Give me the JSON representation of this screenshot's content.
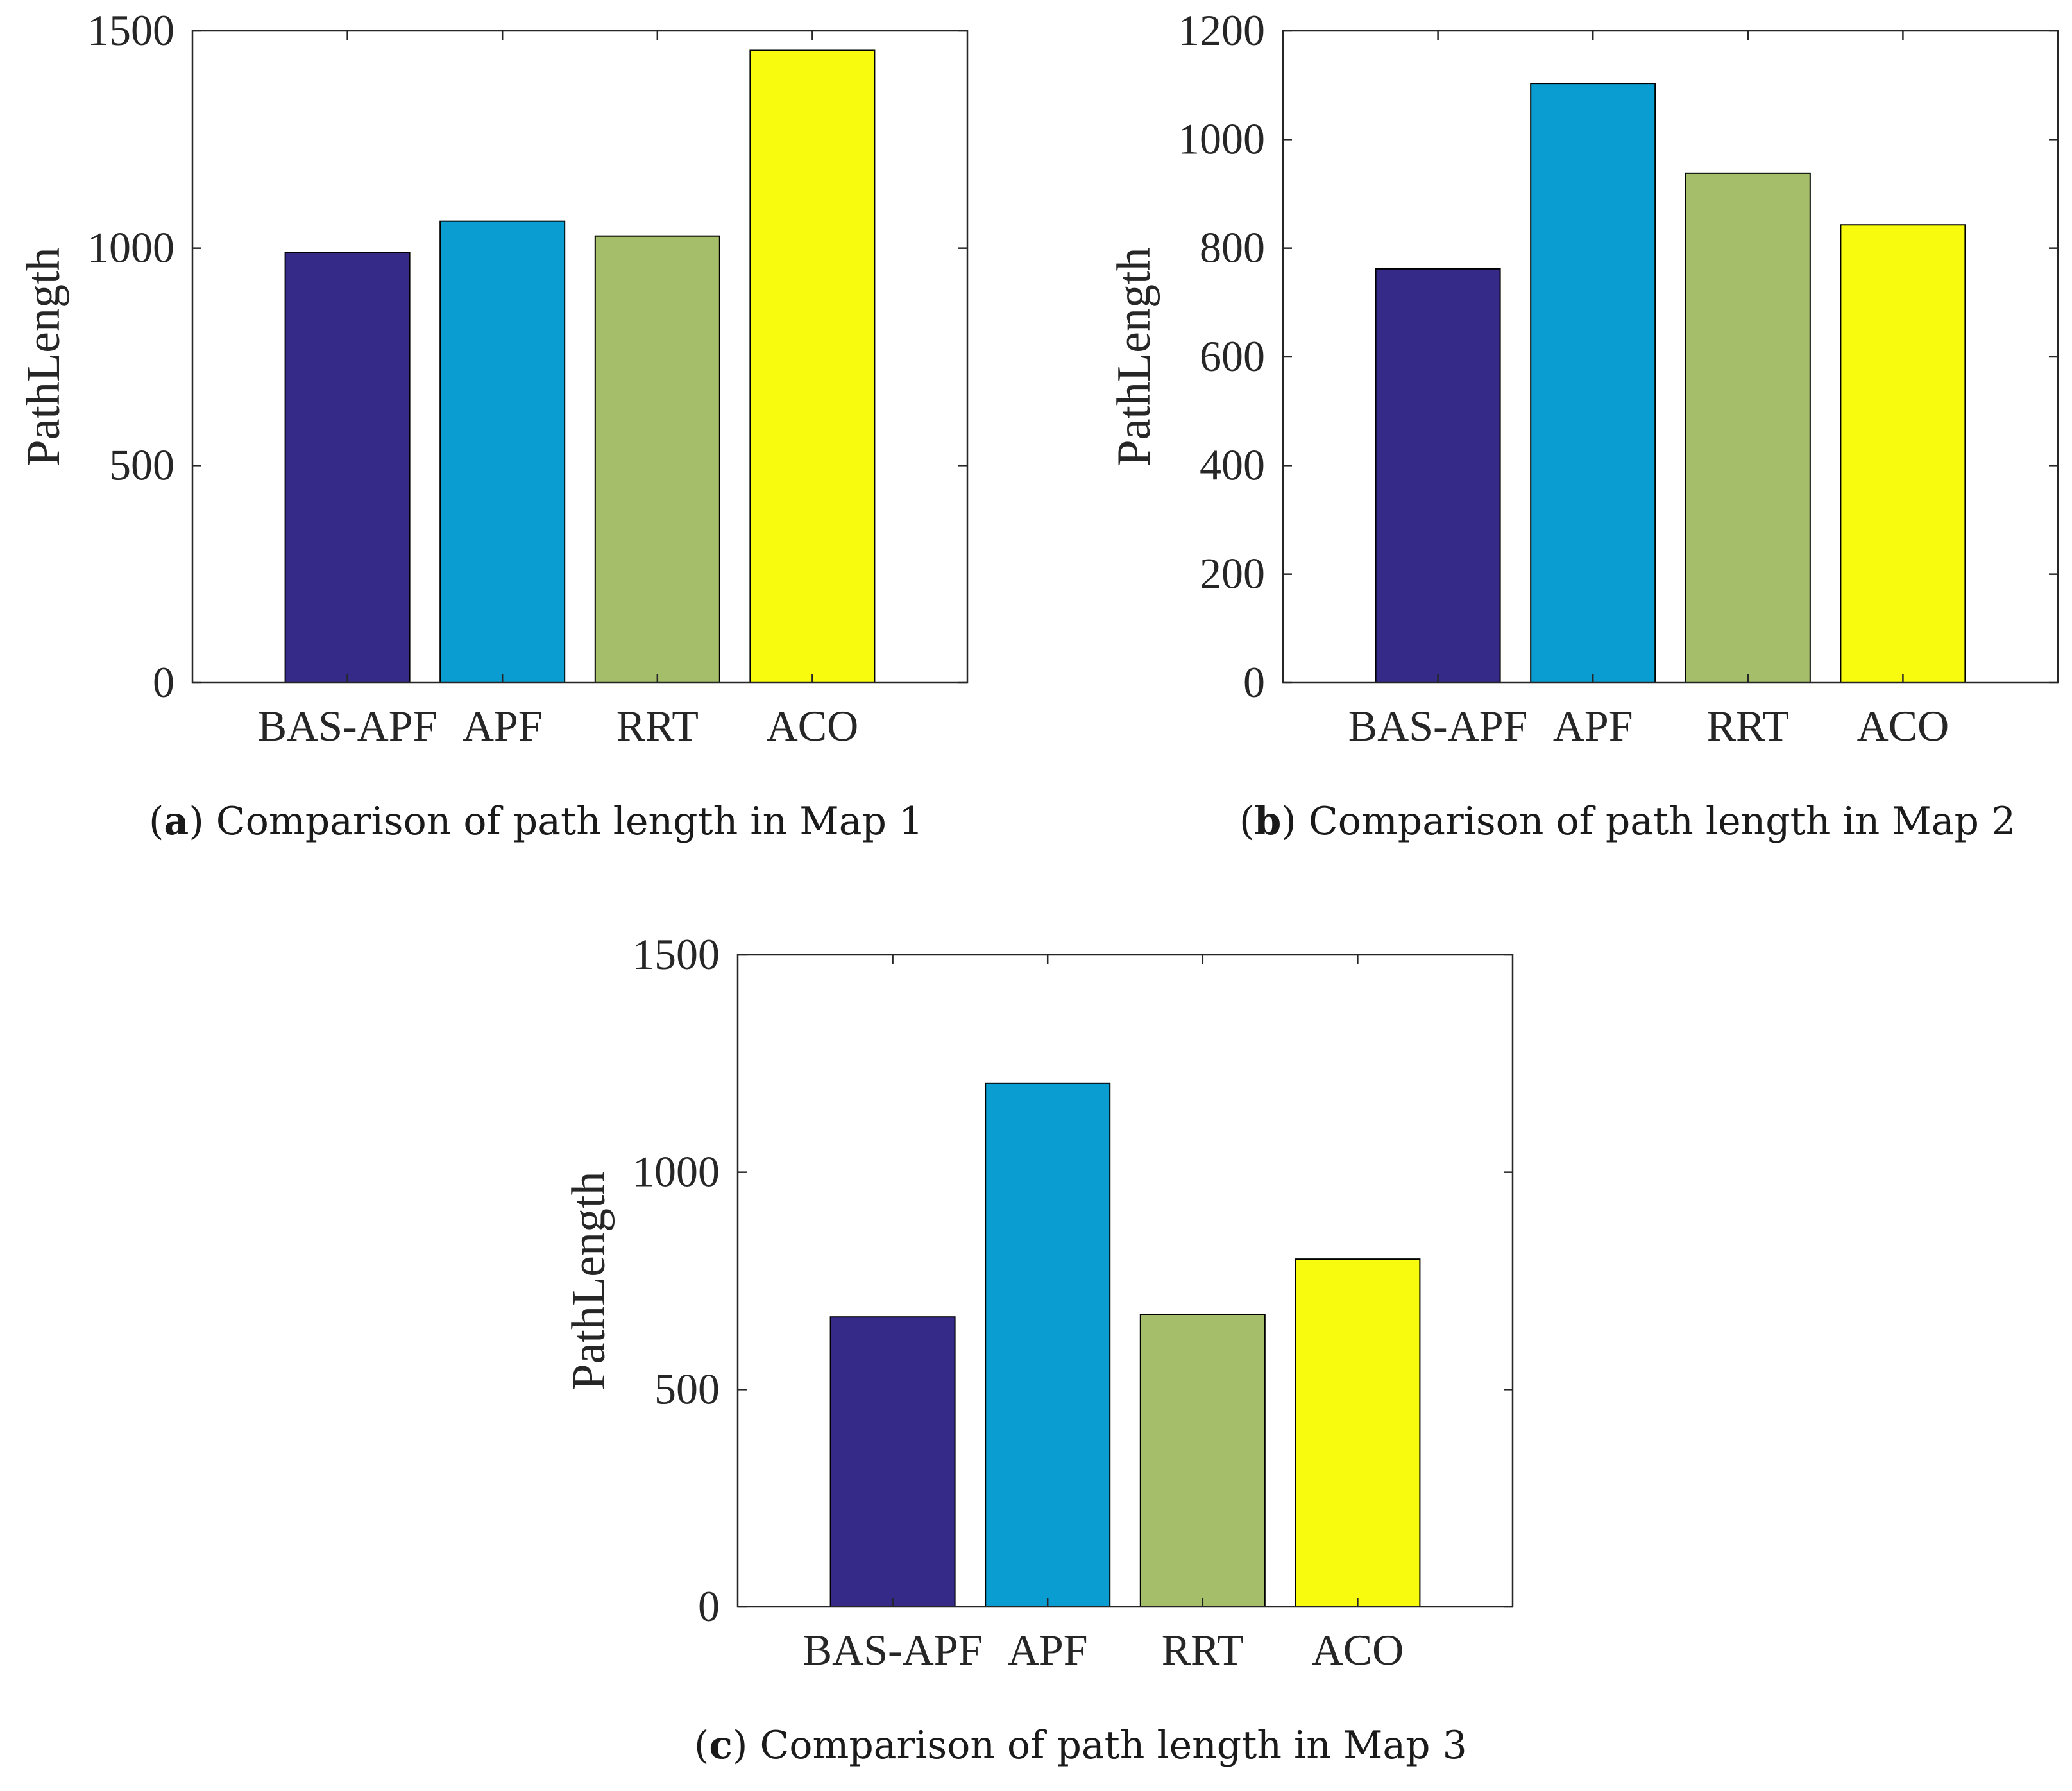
{
  "chart_data": [
    {
      "type": "bar",
      "panel": "a",
      "caption_tag": "a",
      "caption": "Comparison of path length in Map 1",
      "title": "",
      "xlabel": "",
      "ylabel": "PathLength",
      "categories": [
        "BAS-APF",
        "APF",
        "RRT",
        "ACO"
      ],
      "values": [
        990,
        1062,
        1028,
        1455
      ],
      "ylim": [
        0,
        1500
      ],
      "yticks": [
        0,
        500,
        1000,
        1500
      ],
      "grid": false,
      "colors": [
        "#352a87",
        "#099dd1",
        "#a5be6a",
        "#f9fb0e"
      ]
    },
    {
      "type": "bar",
      "panel": "b",
      "caption_tag": "b",
      "caption": "Comparison of path length in Map 2",
      "title": "",
      "xlabel": "",
      "ylabel": "PathLength",
      "categories": [
        "BAS-APF",
        "APF",
        "RRT",
        "ACO"
      ],
      "values": [
        762,
        1103,
        938,
        843
      ],
      "ylim": [
        0,
        1200
      ],
      "yticks": [
        0,
        200,
        400,
        600,
        800,
        1000,
        1200
      ],
      "grid": false,
      "colors": [
        "#352a87",
        "#099dd1",
        "#a5be6a",
        "#f9fb0e"
      ]
    },
    {
      "type": "bar",
      "panel": "c",
      "caption_tag": "c",
      "caption": "Comparison of path length in Map 3",
      "title": "",
      "xlabel": "",
      "ylabel": "PathLength",
      "categories": [
        "BAS-APF",
        "APF",
        "RRT",
        "ACO"
      ],
      "values": [
        667,
        1205,
        672,
        800
      ],
      "ylim": [
        0,
        1500
      ],
      "yticks": [
        0,
        500,
        1000,
        1500
      ],
      "grid": false,
      "colors": [
        "#352a87",
        "#099dd1",
        "#a5be6a",
        "#f9fb0e"
      ]
    }
  ]
}
